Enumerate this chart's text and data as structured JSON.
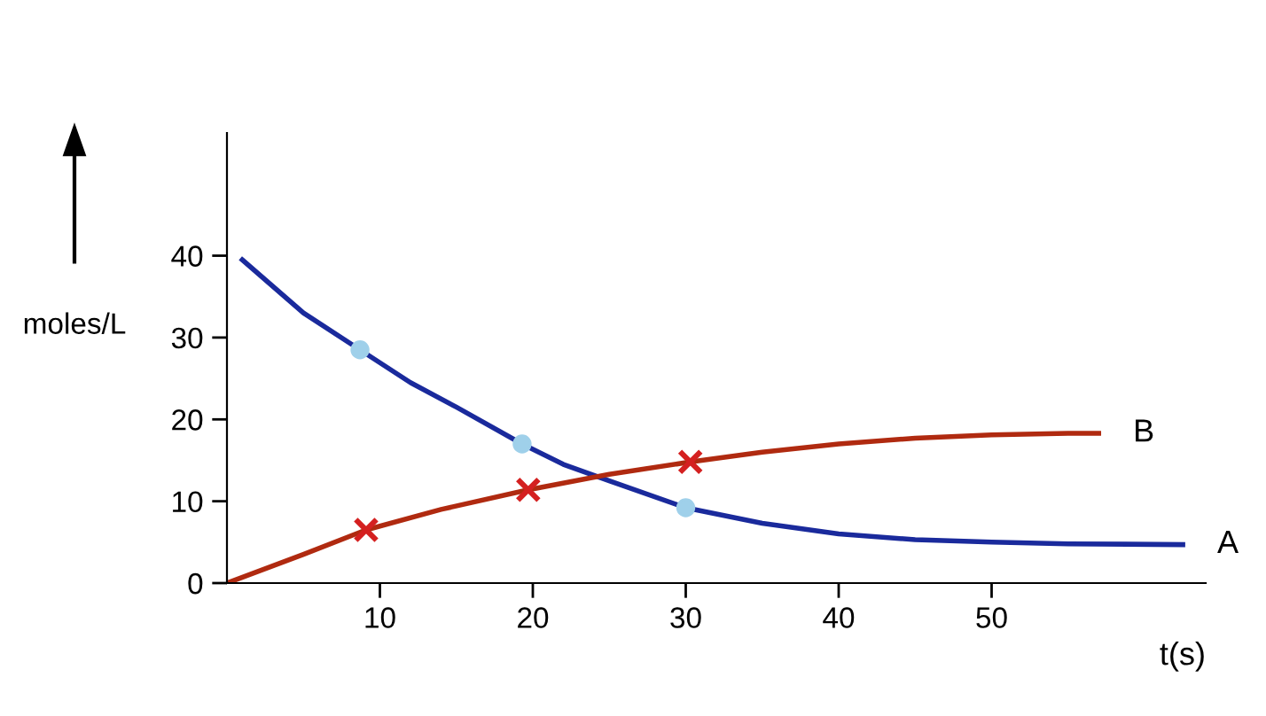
{
  "chart_data": {
    "type": "line",
    "ylabel": "moles/L",
    "xlabel": "t(s)",
    "xlim": [
      0,
      64
    ],
    "ylim": [
      0,
      55
    ],
    "xticks": [
      10,
      20,
      30,
      40,
      50
    ],
    "yticks": [
      0,
      10,
      20,
      30,
      40
    ],
    "grid": false,
    "legend": false,
    "line_style": "solid",
    "series": [
      {
        "name": "A",
        "color": "#1a2a9c",
        "x": [
          1,
          5,
          8.7,
          12,
          15,
          19.3,
          22,
          25,
          30,
          35,
          40,
          45,
          50,
          55,
          62.5
        ],
        "values": [
          39.5,
          33,
          28.5,
          24.5,
          21.5,
          17,
          14.5,
          12.5,
          9.2,
          7.3,
          6,
          5.3,
          5,
          4.8,
          4.7
        ],
        "marker": "none"
      },
      {
        "name": "B",
        "color": "#b02a10",
        "x": [
          0,
          5,
          9.1,
          14,
          19.7,
          25,
          30.3,
          35,
          40,
          45,
          50,
          55,
          57
        ],
        "values": [
          0,
          3.5,
          6.5,
          9,
          11.4,
          13.3,
          14.8,
          16,
          17,
          17.7,
          18.1,
          18.3,
          18.3
        ],
        "marker": "none"
      },
      {
        "type": "scatter",
        "color": "#9fd0ea",
        "x": [
          8.7,
          19.3,
          30
        ],
        "values": [
          28.5,
          17,
          9.2
        ],
        "marker": "circle"
      },
      {
        "type": "scatter",
        "color": "#d42020",
        "x": [
          9.1,
          19.7,
          30.3
        ],
        "values": [
          6.5,
          11.4,
          14.8
        ],
        "marker": "cross"
      }
    ]
  }
}
